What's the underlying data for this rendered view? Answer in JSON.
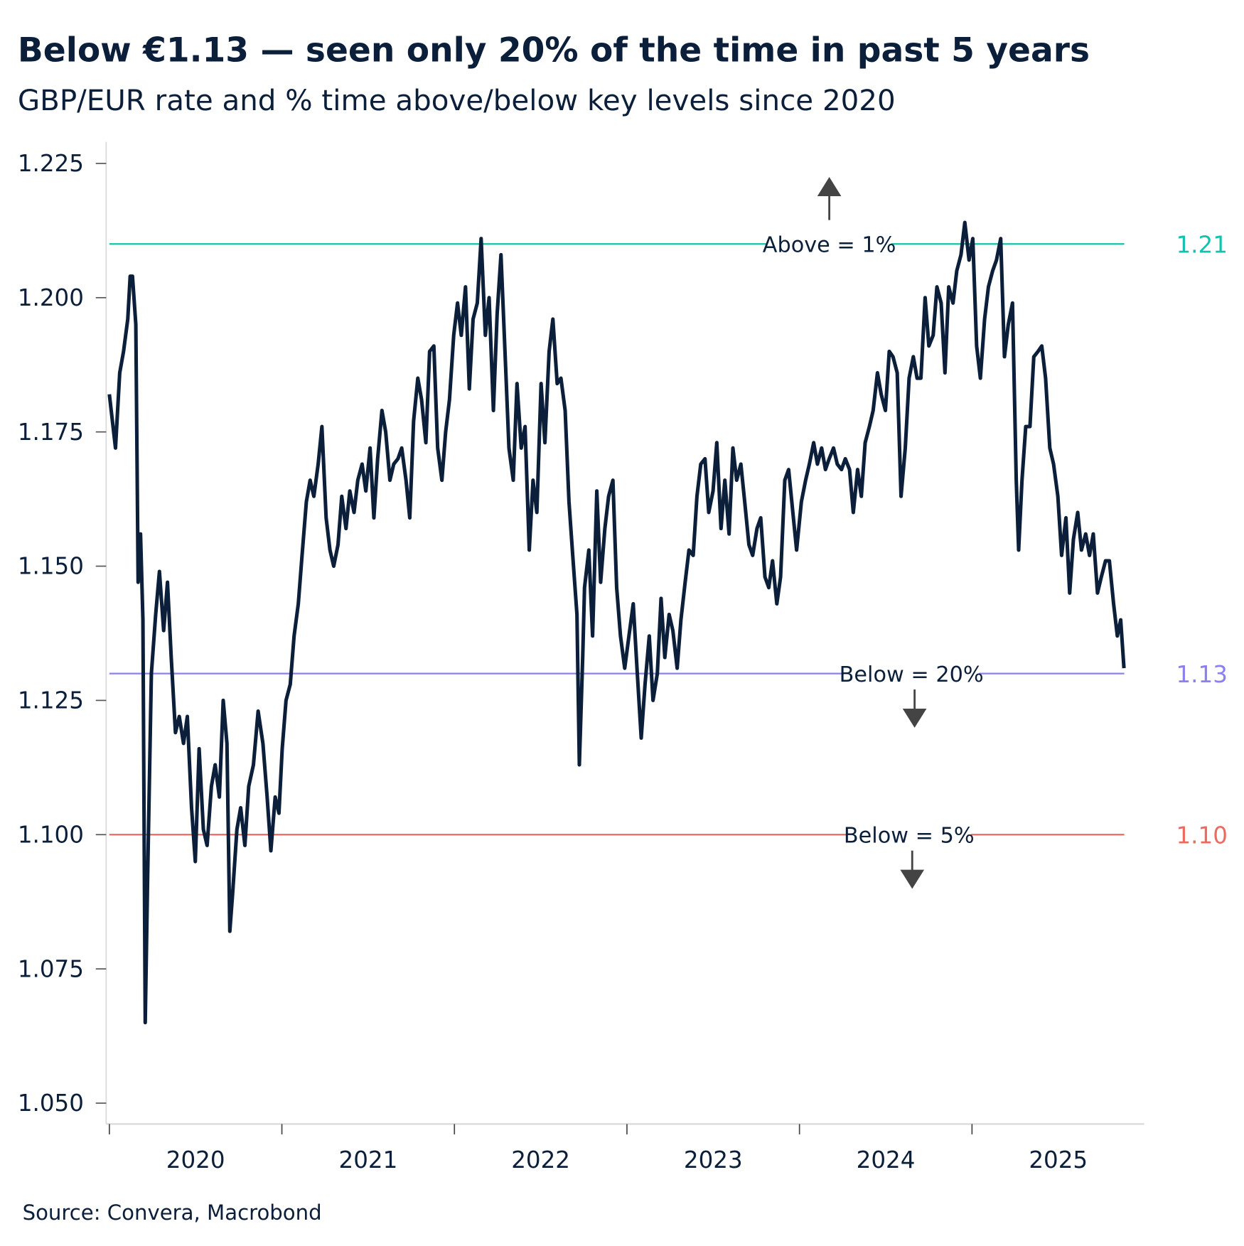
{
  "title": "Below €1.13 — seen only 20% of the time in past 5 years",
  "subtitle": "GBP/EUR rate and % time above/below key levels since 2020",
  "source": "Source: Convera, Macrobond",
  "chart_data": {
    "type": "line",
    "title": "Below €1.13 — seen only 20% of the time in past 5 years",
    "subtitle": "GBP/EUR rate and % time above/below key levels since 2020",
    "xlabel": "",
    "ylabel": "",
    "xlim": [
      "2020-01-01",
      "2025-12-31"
    ],
    "ylim": [
      1.045,
      1.229
    ],
    "y_ticks": [
      "1.050",
      "1.075",
      "1.100",
      "1.125",
      "1.150",
      "1.175",
      "1.200",
      "1.225"
    ],
    "x_tick_labels": [
      "2020",
      "2021",
      "2022",
      "2023",
      "2024",
      "2025"
    ],
    "grid": false,
    "line_color": "#0b1f3a",
    "series": [
      {
        "points": [
          [
            "2020-01-01",
            1.182
          ],
          [
            "2020-01-14",
            1.172
          ],
          [
            "2020-01-23",
            1.186
          ],
          [
            "2020-01-31",
            1.19
          ],
          [
            "2020-02-09",
            1.196
          ],
          [
            "2020-02-14",
            1.204
          ],
          [
            "2020-02-19",
            1.204
          ],
          [
            "2020-02-26",
            1.195
          ],
          [
            "2020-03-02",
            1.147
          ],
          [
            "2020-03-07",
            1.156
          ],
          [
            "2020-03-12",
            1.14
          ],
          [
            "2020-03-17",
            1.065
          ],
          [
            "2020-03-22",
            1.092
          ],
          [
            "2020-03-30",
            1.13
          ],
          [
            "2020-04-08",
            1.141
          ],
          [
            "2020-04-16",
            1.149
          ],
          [
            "2020-04-25",
            1.138
          ],
          [
            "2020-05-03",
            1.147
          ],
          [
            "2020-05-11",
            1.133
          ],
          [
            "2020-05-20",
            1.119
          ],
          [
            "2020-05-28",
            1.122
          ],
          [
            "2020-06-06",
            1.117
          ],
          [
            "2020-06-14",
            1.122
          ],
          [
            "2020-06-23",
            1.105
          ],
          [
            "2020-07-01",
            1.095
          ],
          [
            "2020-07-09",
            1.116
          ],
          [
            "2020-07-18",
            1.101
          ],
          [
            "2020-07-26",
            1.098
          ],
          [
            "2020-08-04",
            1.109
          ],
          [
            "2020-08-12",
            1.113
          ],
          [
            "2020-08-21",
            1.107
          ],
          [
            "2020-08-29",
            1.125
          ],
          [
            "2020-09-06",
            1.117
          ],
          [
            "2020-09-12",
            1.082
          ],
          [
            "2020-09-18",
            1.089
          ],
          [
            "2020-09-27",
            1.101
          ],
          [
            "2020-10-05",
            1.105
          ],
          [
            "2020-10-14",
            1.098
          ],
          [
            "2020-10-22",
            1.109
          ],
          [
            "2020-11-01",
            1.113
          ],
          [
            "2020-11-11",
            1.123
          ],
          [
            "2020-11-21",
            1.117
          ],
          [
            "2020-11-30",
            1.107
          ],
          [
            "2020-12-08",
            1.097
          ],
          [
            "2020-12-17",
            1.107
          ],
          [
            "2020-12-25",
            1.104
          ],
          [
            "2021-01-01",
            1.116
          ],
          [
            "2021-01-09",
            1.125
          ],
          [
            "2021-01-18",
            1.128
          ],
          [
            "2021-01-26",
            1.137
          ],
          [
            "2021-02-04",
            1.143
          ],
          [
            "2021-02-12",
            1.152
          ],
          [
            "2021-02-21",
            1.162
          ],
          [
            "2021-03-01",
            1.166
          ],
          [
            "2021-03-09",
            1.163
          ],
          [
            "2021-03-18",
            1.169
          ],
          [
            "2021-03-26",
            1.176
          ],
          [
            "2021-04-04",
            1.159
          ],
          [
            "2021-04-12",
            1.153
          ],
          [
            "2021-04-20",
            1.15
          ],
          [
            "2021-04-29",
            1.154
          ],
          [
            "2021-05-07",
            1.163
          ],
          [
            "2021-05-16",
            1.157
          ],
          [
            "2021-05-24",
            1.164
          ],
          [
            "2021-06-02",
            1.16
          ],
          [
            "2021-06-10",
            1.166
          ],
          [
            "2021-06-19",
            1.169
          ],
          [
            "2021-06-27",
            1.164
          ],
          [
            "2021-07-06",
            1.172
          ],
          [
            "2021-07-14",
            1.159
          ],
          [
            "2021-07-22",
            1.17
          ],
          [
            "2021-07-31",
            1.179
          ],
          [
            "2021-08-08",
            1.175
          ],
          [
            "2021-08-17",
            1.166
          ],
          [
            "2021-08-25",
            1.169
          ],
          [
            "2021-09-03",
            1.17
          ],
          [
            "2021-09-11",
            1.172
          ],
          [
            "2021-09-20",
            1.166
          ],
          [
            "2021-09-28",
            1.159
          ],
          [
            "2021-10-06",
            1.177
          ],
          [
            "2021-10-15",
            1.185
          ],
          [
            "2021-10-23",
            1.181
          ],
          [
            "2021-11-01",
            1.173
          ],
          [
            "2021-11-09",
            1.19
          ],
          [
            "2021-11-18",
            1.191
          ],
          [
            "2021-11-26",
            1.172
          ],
          [
            "2021-12-05",
            1.166
          ],
          [
            "2021-12-13",
            1.175
          ],
          [
            "2021-12-21",
            1.181
          ],
          [
            "2021-12-30",
            1.193
          ],
          [
            "2022-01-07",
            1.199
          ],
          [
            "2022-01-15",
            1.193
          ],
          [
            "2022-01-24",
            1.202
          ],
          [
            "2022-02-01",
            1.183
          ],
          [
            "2022-02-09",
            1.196
          ],
          [
            "2022-02-18",
            1.199
          ],
          [
            "2022-02-26",
            1.211
          ],
          [
            "2022-03-07",
            1.193
          ],
          [
            "2022-03-15",
            1.2
          ],
          [
            "2022-03-24",
            1.179
          ],
          [
            "2022-04-01",
            1.197
          ],
          [
            "2022-04-09",
            1.208
          ],
          [
            "2022-04-18",
            1.189
          ],
          [
            "2022-04-26",
            1.172
          ],
          [
            "2022-05-05",
            1.166
          ],
          [
            "2022-05-13",
            1.184
          ],
          [
            "2022-05-22",
            1.172
          ],
          [
            "2022-05-30",
            1.176
          ],
          [
            "2022-06-08",
            1.153
          ],
          [
            "2022-06-16",
            1.166
          ],
          [
            "2022-06-24",
            1.16
          ],
          [
            "2022-07-03",
            1.184
          ],
          [
            "2022-07-11",
            1.173
          ],
          [
            "2022-07-20",
            1.19
          ],
          [
            "2022-07-28",
            1.196
          ],
          [
            "2022-08-06",
            1.184
          ],
          [
            "2022-08-14",
            1.185
          ],
          [
            "2022-08-23",
            1.179
          ],
          [
            "2022-08-31",
            1.162
          ],
          [
            "2022-09-08",
            1.152
          ],
          [
            "2022-09-17",
            1.141
          ],
          [
            "2022-09-22",
            1.113
          ],
          [
            "2022-09-29",
            1.133
          ],
          [
            "2022-10-03",
            1.146
          ],
          [
            "2022-10-12",
            1.153
          ],
          [
            "2022-10-20",
            1.137
          ],
          [
            "2022-10-29",
            1.164
          ],
          [
            "2022-11-06",
            1.147
          ],
          [
            "2022-11-15",
            1.157
          ],
          [
            "2022-11-23",
            1.163
          ],
          [
            "2022-12-02",
            1.166
          ],
          [
            "2022-12-10",
            1.146
          ],
          [
            "2022-12-18",
            1.137
          ],
          [
            "2022-12-27",
            1.131
          ],
          [
            "2023-01-05",
            1.137
          ],
          [
            "2023-01-14",
            1.143
          ],
          [
            "2023-01-22",
            1.131
          ],
          [
            "2023-01-31",
            1.118
          ],
          [
            "2023-02-08",
            1.128
          ],
          [
            "2023-02-17",
            1.137
          ],
          [
            "2023-02-25",
            1.125
          ],
          [
            "2023-03-06",
            1.13
          ],
          [
            "2023-03-14",
            1.144
          ],
          [
            "2023-03-22",
            1.133
          ],
          [
            "2023-03-31",
            1.141
          ],
          [
            "2023-04-08",
            1.138
          ],
          [
            "2023-04-17",
            1.131
          ],
          [
            "2023-04-25",
            1.14
          ],
          [
            "2023-05-04",
            1.147
          ],
          [
            "2023-05-12",
            1.153
          ],
          [
            "2023-05-21",
            1.152
          ],
          [
            "2023-05-29",
            1.163
          ],
          [
            "2023-06-06",
            1.169
          ],
          [
            "2023-06-15",
            1.17
          ],
          [
            "2023-06-23",
            1.16
          ],
          [
            "2023-07-02",
            1.164
          ],
          [
            "2023-07-10",
            1.173
          ],
          [
            "2023-07-19",
            1.157
          ],
          [
            "2023-07-27",
            1.166
          ],
          [
            "2023-08-05",
            1.156
          ],
          [
            "2023-08-13",
            1.172
          ],
          [
            "2023-08-21",
            1.166
          ],
          [
            "2023-08-30",
            1.169
          ],
          [
            "2023-09-07",
            1.162
          ],
          [
            "2023-09-16",
            1.154
          ],
          [
            "2023-09-24",
            1.152
          ],
          [
            "2023-10-03",
            1.157
          ],
          [
            "2023-10-11",
            1.159
          ],
          [
            "2023-10-20",
            1.148
          ],
          [
            "2023-10-28",
            1.146
          ],
          [
            "2023-11-05",
            1.151
          ],
          [
            "2023-11-14",
            1.143
          ],
          [
            "2023-11-22",
            1.148
          ],
          [
            "2023-12-01",
            1.166
          ],
          [
            "2023-12-09",
            1.168
          ],
          [
            "2023-12-18",
            1.16
          ],
          [
            "2023-12-26",
            1.153
          ],
          [
            "2024-01-05",
            1.162
          ],
          [
            "2024-01-14",
            1.166
          ],
          [
            "2024-01-22",
            1.169
          ],
          [
            "2024-01-31",
            1.173
          ],
          [
            "2024-02-08",
            1.169
          ],
          [
            "2024-02-17",
            1.172
          ],
          [
            "2024-02-25",
            1.168
          ],
          [
            "2024-03-04",
            1.17
          ],
          [
            "2024-03-13",
            1.172
          ],
          [
            "2024-03-21",
            1.169
          ],
          [
            "2024-03-30",
            1.168
          ],
          [
            "2024-04-07",
            1.17
          ],
          [
            "2024-04-16",
            1.168
          ],
          [
            "2024-04-24",
            1.16
          ],
          [
            "2024-05-03",
            1.168
          ],
          [
            "2024-05-11",
            1.163
          ],
          [
            "2024-05-19",
            1.173
          ],
          [
            "2024-05-28",
            1.176
          ],
          [
            "2024-06-05",
            1.179
          ],
          [
            "2024-06-14",
            1.186
          ],
          [
            "2024-06-22",
            1.182
          ],
          [
            "2024-07-01",
            1.179
          ],
          [
            "2024-07-09",
            1.19
          ],
          [
            "2024-07-17",
            1.189
          ],
          [
            "2024-07-26",
            1.186
          ],
          [
            "2024-08-03",
            1.163
          ],
          [
            "2024-08-12",
            1.172
          ],
          [
            "2024-08-20",
            1.185
          ],
          [
            "2024-08-29",
            1.189
          ],
          [
            "2024-09-06",
            1.185
          ],
          [
            "2024-09-14",
            1.185
          ],
          [
            "2024-09-23",
            1.2
          ],
          [
            "2024-10-01",
            1.191
          ],
          [
            "2024-10-10",
            1.193
          ],
          [
            "2024-10-18",
            1.202
          ],
          [
            "2024-10-27",
            1.199
          ],
          [
            "2024-11-04",
            1.186
          ],
          [
            "2024-11-12",
            1.202
          ],
          [
            "2024-11-21",
            1.199
          ],
          [
            "2024-11-29",
            1.205
          ],
          [
            "2024-12-08",
            1.208
          ],
          [
            "2024-12-16",
            1.214
          ],
          [
            "2024-12-25",
            1.207
          ],
          [
            "2025-01-02",
            1.211
          ],
          [
            "2025-01-10",
            1.191
          ],
          [
            "2025-01-18",
            1.185
          ],
          [
            "2025-01-27",
            1.196
          ],
          [
            "2025-02-04",
            1.202
          ],
          [
            "2025-02-13",
            1.205
          ],
          [
            "2025-02-21",
            1.207
          ],
          [
            "2025-03-02",
            1.211
          ],
          [
            "2025-03-10",
            1.189
          ],
          [
            "2025-03-18",
            1.195
          ],
          [
            "2025-03-27",
            1.199
          ],
          [
            "2025-04-04",
            1.166
          ],
          [
            "2025-04-09",
            1.153
          ],
          [
            "2025-04-16",
            1.166
          ],
          [
            "2025-04-24",
            1.176
          ],
          [
            "2025-05-03",
            1.176
          ],
          [
            "2025-05-11",
            1.189
          ],
          [
            "2025-05-20",
            1.19
          ],
          [
            "2025-05-28",
            1.191
          ],
          [
            "2025-06-05",
            1.185
          ],
          [
            "2025-06-14",
            1.172
          ],
          [
            "2025-06-22",
            1.169
          ],
          [
            "2025-07-01",
            1.163
          ],
          [
            "2025-07-09",
            1.152
          ],
          [
            "2025-07-18",
            1.159
          ],
          [
            "2025-07-26",
            1.145
          ],
          [
            "2025-08-03",
            1.155
          ],
          [
            "2025-08-12",
            1.16
          ],
          [
            "2025-08-20",
            1.153
          ],
          [
            "2025-08-29",
            1.156
          ],
          [
            "2025-09-06",
            1.152
          ],
          [
            "2025-09-14",
            1.156
          ],
          [
            "2025-09-23",
            1.145
          ],
          [
            "2025-10-01",
            1.148
          ],
          [
            "2025-10-10",
            1.151
          ],
          [
            "2025-10-18",
            1.151
          ],
          [
            "2025-10-27",
            1.143
          ],
          [
            "2025-11-04",
            1.137
          ],
          [
            "2025-11-11",
            1.14
          ],
          [
            "2025-11-18",
            1.131
          ]
        ]
      }
    ],
    "reference_lines": [
      {
        "value": 1.21,
        "value_label": "1.21",
        "annotation": "Above = 1%",
        "direction": "up",
        "color": "#13c2ae"
      },
      {
        "value": 1.13,
        "value_label": "1.13",
        "annotation": "Below = 20%",
        "direction": "down",
        "color": "#8b80ee"
      },
      {
        "value": 1.1,
        "value_label": "1.10",
        "annotation": "Below = 5%",
        "direction": "down",
        "color": "#ec6a5e"
      }
    ]
  }
}
